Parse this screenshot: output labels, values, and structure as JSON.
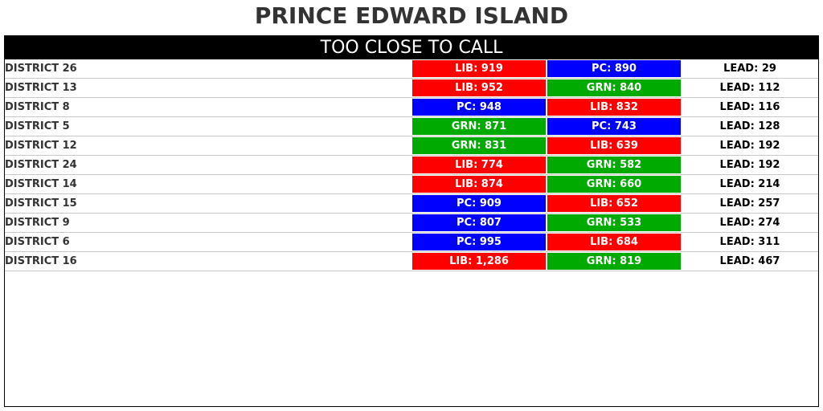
{
  "title": "PRINCE EDWARD ISLAND",
  "header": "TOO CLOSE TO CALL",
  "colors": {
    "LIB": "#ff0000",
    "PC": "#0000ff",
    "GRN": "#00aa00"
  },
  "rows": [
    {
      "district": "DISTRICT 26",
      "first": "LIB: 919",
      "first_party": "LIB",
      "second": "PC: 890",
      "second_party": "PC",
      "lead": "LEAD: 29"
    },
    {
      "district": "DISTRICT 13",
      "first": "LIB: 952",
      "first_party": "LIB",
      "second": "GRN: 840",
      "second_party": "GRN",
      "lead": "LEAD: 112"
    },
    {
      "district": "DISTRICT 8",
      "first": "PC: 948",
      "first_party": "PC",
      "second": "LIB: 832",
      "second_party": "LIB",
      "lead": "LEAD: 116"
    },
    {
      "district": "DISTRICT 5",
      "first": "GRN: 871",
      "first_party": "GRN",
      "second": "PC: 743",
      "second_party": "PC",
      "lead": "LEAD: 128"
    },
    {
      "district": "DISTRICT 12",
      "first": "GRN: 831",
      "first_party": "GRN",
      "second": "LIB: 639",
      "second_party": "LIB",
      "lead": "LEAD: 192"
    },
    {
      "district": "DISTRICT 24",
      "first": "LIB: 774",
      "first_party": "LIB",
      "second": "GRN: 582",
      "second_party": "GRN",
      "lead": "LEAD: 192"
    },
    {
      "district": "DISTRICT 14",
      "first": "LIB: 874",
      "first_party": "LIB",
      "second": "GRN: 660",
      "second_party": "GRN",
      "lead": "LEAD: 214"
    },
    {
      "district": "DISTRICT 15",
      "first": "PC: 909",
      "first_party": "PC",
      "second": "LIB: 652",
      "second_party": "LIB",
      "lead": "LEAD: 257"
    },
    {
      "district": "DISTRICT 9",
      "first": "PC: 807",
      "first_party": "PC",
      "second": "GRN: 533",
      "second_party": "GRN",
      "lead": "LEAD: 274"
    },
    {
      "district": "DISTRICT 6",
      "first": "PC: 995",
      "first_party": "PC",
      "second": "LIB: 684",
      "second_party": "LIB",
      "lead": "LEAD: 311"
    },
    {
      "district": "DISTRICT 16",
      "first": "LIB: 1,286",
      "first_party": "LIB",
      "second": "GRN: 819",
      "second_party": "GRN",
      "lead": "LEAD: 467"
    }
  ]
}
